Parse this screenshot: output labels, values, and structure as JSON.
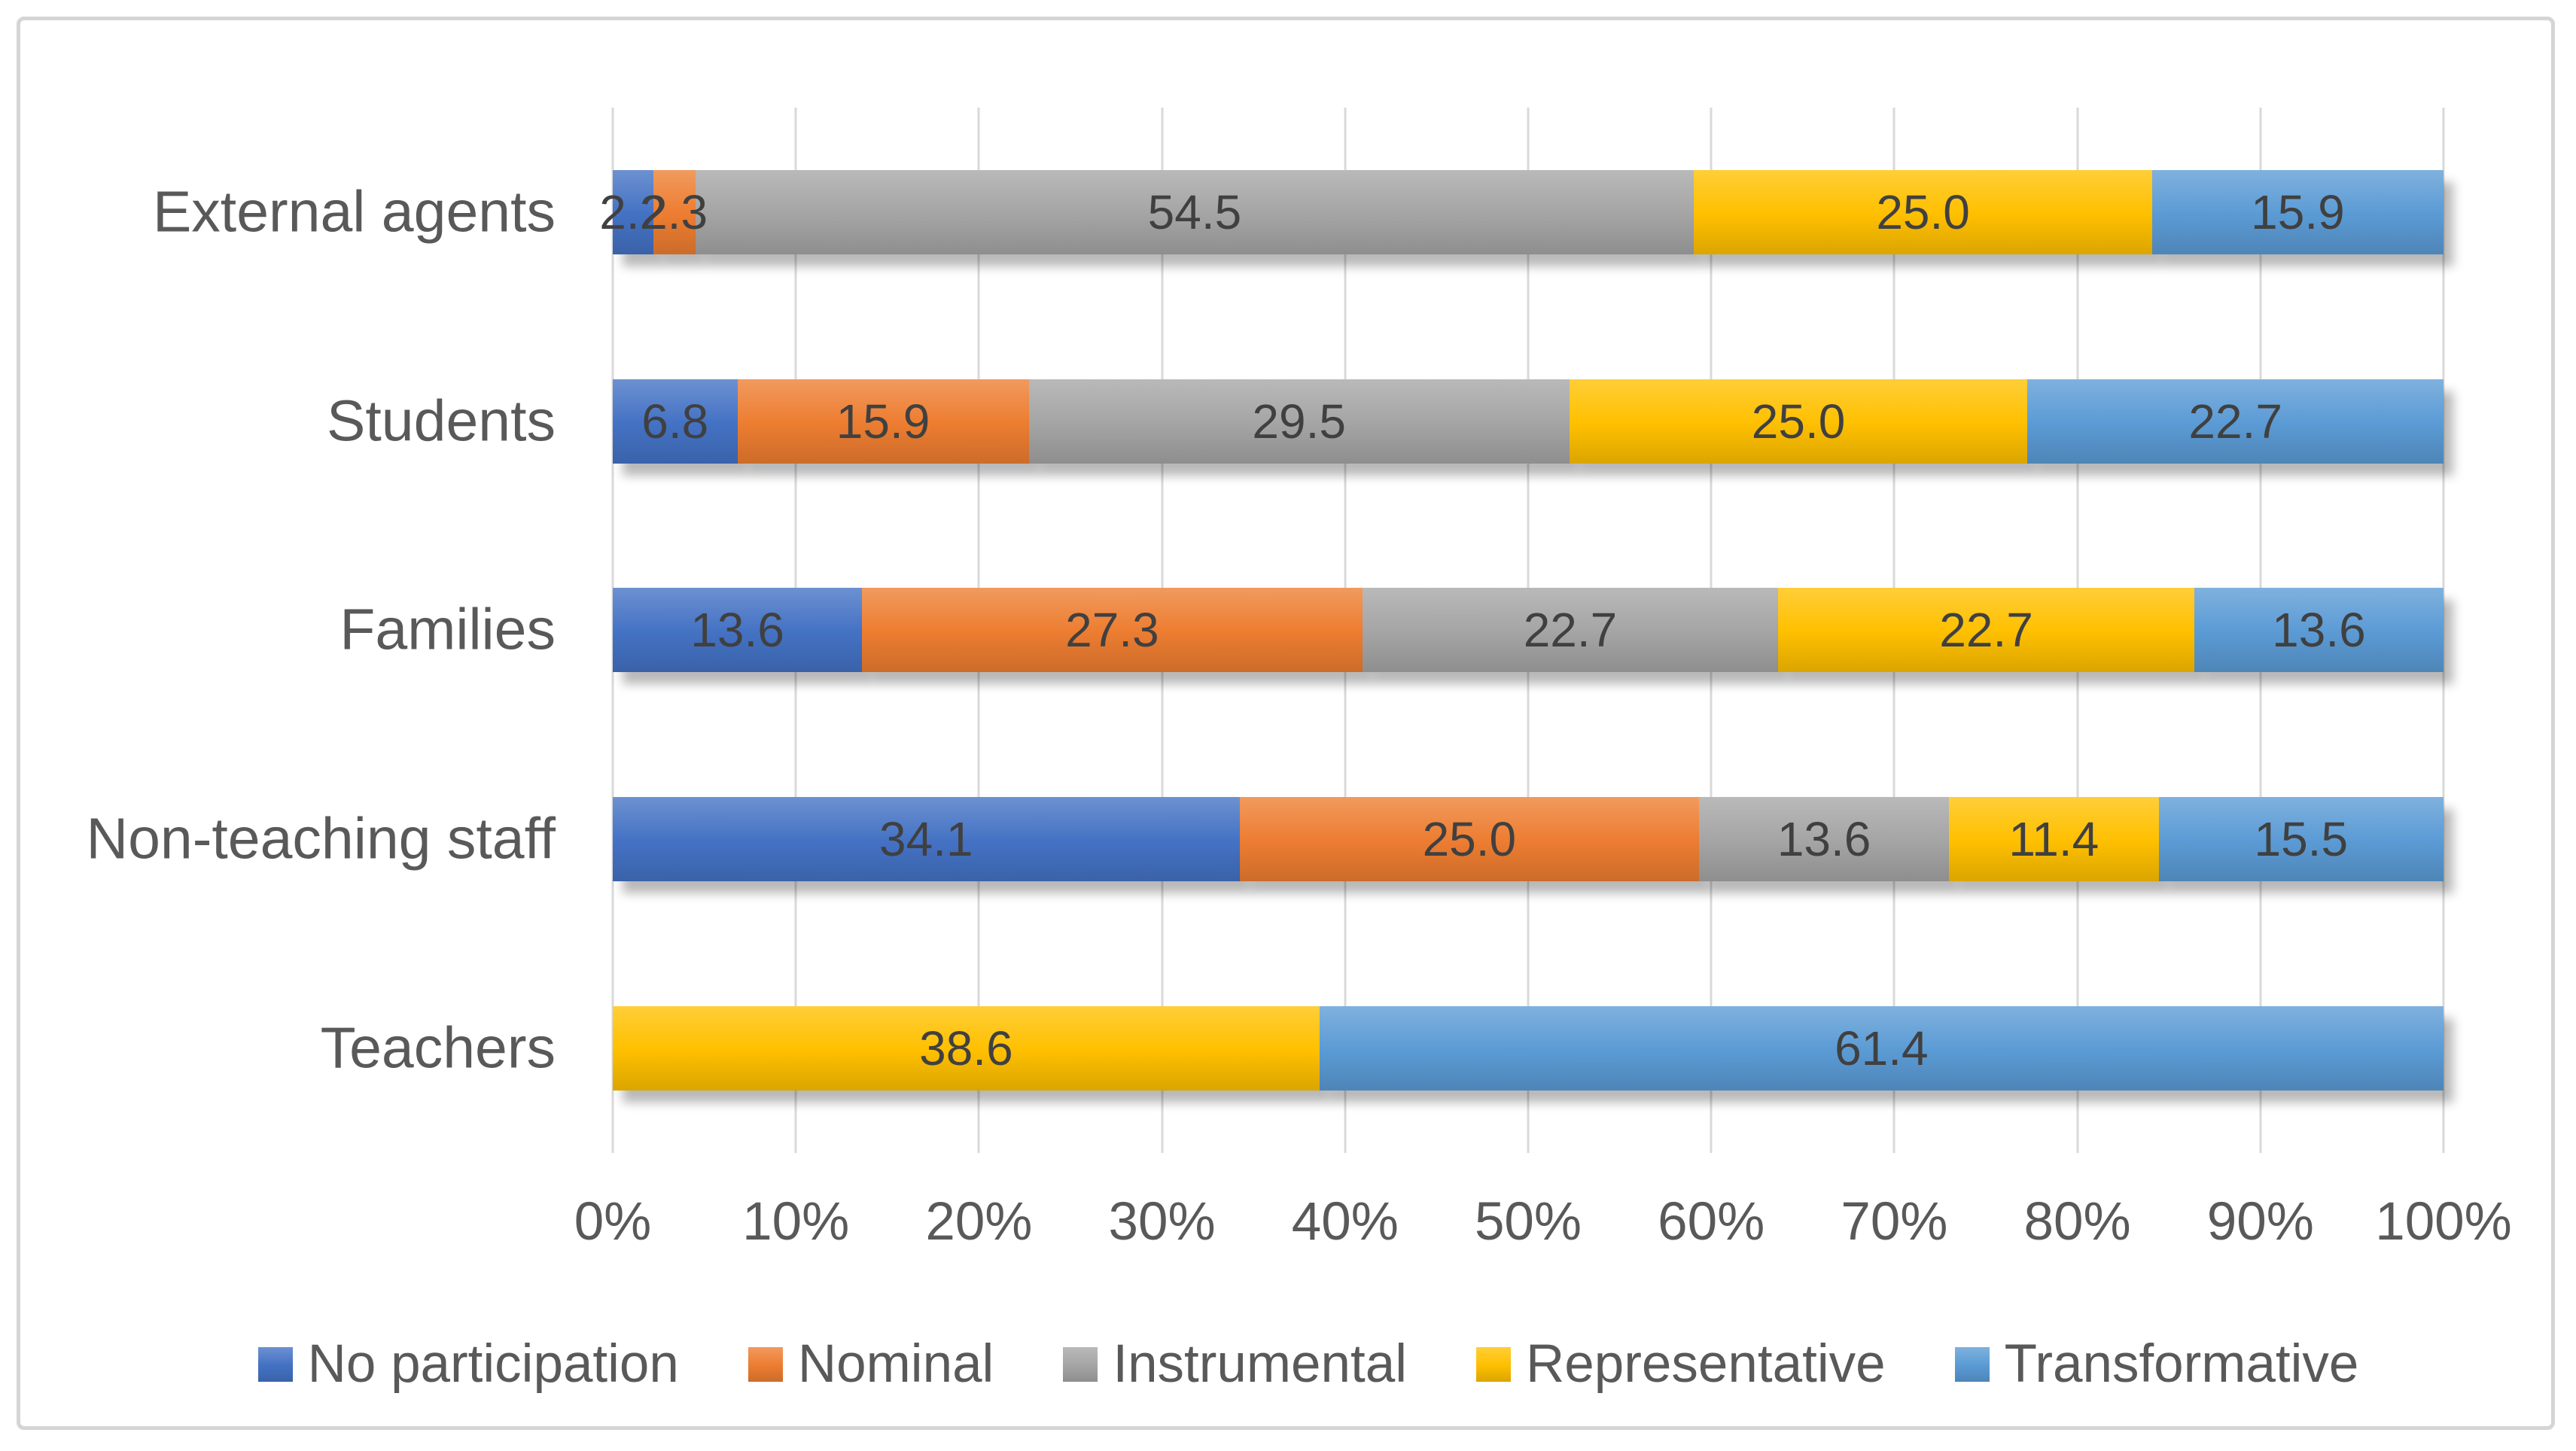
{
  "chart_data": {
    "type": "bar",
    "variant": "horizontal-stacked",
    "title": "",
    "categories": [
      "External agents",
      "Students",
      "Families",
      "Non-teaching staff",
      "Teachers"
    ],
    "series": [
      {
        "name": "No participation",
        "color": "#4472C4",
        "values": [
          2.2,
          6.8,
          13.6,
          34.1,
          null
        ]
      },
      {
        "name": "Nominal",
        "color": "#ED7D31",
        "values": [
          2.3,
          15.9,
          27.3,
          25.0,
          null
        ]
      },
      {
        "name": "Instrumental",
        "color": "#A5A5A5",
        "values": [
          54.5,
          29.5,
          22.7,
          13.6,
          null
        ]
      },
      {
        "name": "Representative",
        "color": "#FFC000",
        "values": [
          25.0,
          25.0,
          22.7,
          11.4,
          38.6
        ]
      },
      {
        "name": "Transformative",
        "color": "#5B9BD5",
        "values": [
          15.9,
          22.7,
          13.6,
          15.5,
          61.4
        ]
      }
    ],
    "data_labels": {
      "visible": true,
      "decimals": 1,
      "color": "#404040"
    },
    "x_axis": {
      "min": 0,
      "max": 100,
      "tick_step": 10,
      "ticks": [
        "0%",
        "10%",
        "20%",
        "30%",
        "40%",
        "50%",
        "60%",
        "70%",
        "80%",
        "90%",
        "100%"
      ]
    },
    "grid": "vertical",
    "gridline_color": "#D9D9D9",
    "legend_position": "bottom",
    "text_color": "#595959",
    "frame_border_color": "#D5D5D5",
    "bar_style": "gradient-with-shadow"
  }
}
